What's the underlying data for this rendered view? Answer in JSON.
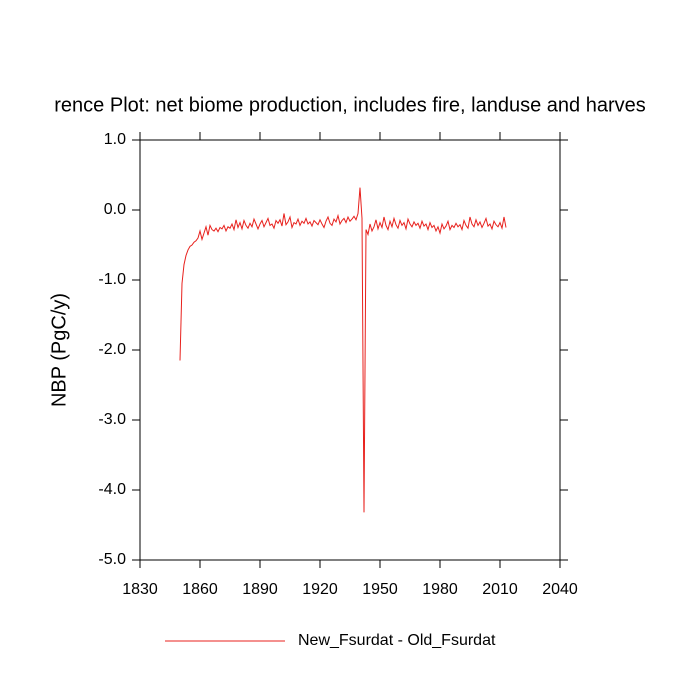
{
  "chart_data": {
    "type": "line",
    "title": "rence Plot: net biome production, includes fire, landuse and harves",
    "y_label": "NBP  (PgC/y)",
    "x": [
      1850,
      1851,
      1852,
      1853,
      1854,
      1855,
      1856,
      1857,
      1858,
      1859,
      1860,
      1861,
      1862,
      1863,
      1864,
      1865,
      1866,
      1867,
      1868,
      1869,
      1870,
      1871,
      1872,
      1873,
      1874,
      1875,
      1876,
      1877,
      1878,
      1879,
      1880,
      1881,
      1882,
      1883,
      1884,
      1885,
      1886,
      1887,
      1888,
      1889,
      1890,
      1891,
      1892,
      1893,
      1894,
      1895,
      1896,
      1897,
      1898,
      1899,
      1900,
      1901,
      1902,
      1903,
      1904,
      1905,
      1906,
      1907,
      1908,
      1909,
      1910,
      1911,
      1912,
      1913,
      1914,
      1915,
      1916,
      1917,
      1918,
      1919,
      1920,
      1921,
      1922,
      1923,
      1924,
      1925,
      1926,
      1927,
      1928,
      1929,
      1930,
      1931,
      1932,
      1933,
      1934,
      1935,
      1936,
      1937,
      1938,
      1939,
      1940,
      1941,
      1942,
      1943,
      1944,
      1945,
      1946,
      1947,
      1948,
      1949,
      1950,
      1951,
      1952,
      1953,
      1954,
      1955,
      1956,
      1957,
      1958,
      1959,
      1960,
      1961,
      1962,
      1963,
      1964,
      1965,
      1966,
      1967,
      1968,
      1969,
      1970,
      1971,
      1972,
      1973,
      1974,
      1975,
      1976,
      1977,
      1978,
      1979,
      1980,
      1981,
      1982,
      1983,
      1984,
      1985,
      1986,
      1987,
      1988,
      1989,
      1990,
      1991,
      1992,
      1993,
      1994,
      1995,
      1996,
      1997,
      1998,
      1999,
      2000,
      2001,
      2002,
      2003,
      2004,
      2005,
      2006,
      2007,
      2008,
      2009,
      2010,
      2011,
      2012,
      2013
    ],
    "series": [
      {
        "name": "New_Fsurdat - Old_Fsurdat",
        "color": "#e8201c",
        "values": [
          -2.15,
          -1.05,
          -0.78,
          -0.65,
          -0.57,
          -0.52,
          -0.5,
          -0.46,
          -0.44,
          -0.4,
          -0.3,
          -0.42,
          -0.33,
          -0.24,
          -0.36,
          -0.22,
          -0.28,
          -0.3,
          -0.26,
          -0.31,
          -0.25,
          -0.27,
          -0.22,
          -0.3,
          -0.24,
          -0.26,
          -0.2,
          -0.28,
          -0.14,
          -0.25,
          -0.18,
          -0.27,
          -0.15,
          -0.22,
          -0.26,
          -0.19,
          -0.24,
          -0.13,
          -0.2,
          -0.27,
          -0.2,
          -0.15,
          -0.24,
          -0.18,
          -0.12,
          -0.22,
          -0.2,
          -0.26,
          -0.15,
          -0.19,
          -0.14,
          -0.23,
          -0.05,
          -0.21,
          -0.17,
          -0.1,
          -0.25,
          -0.18,
          -0.2,
          -0.13,
          -0.22,
          -0.16,
          -0.19,
          -0.12,
          -0.2,
          -0.17,
          -0.23,
          -0.15,
          -0.18,
          -0.21,
          -0.14,
          -0.2,
          -0.25,
          -0.16,
          -0.1,
          -0.19,
          -0.22,
          -0.13,
          -0.17,
          -0.08,
          -0.2,
          -0.15,
          -0.12,
          -0.18,
          -0.1,
          -0.16,
          -0.13,
          -0.09,
          -0.14,
          -0.05,
          0.32,
          -0.12,
          -4.32,
          -0.28,
          -0.35,
          -0.2,
          -0.3,
          -0.24,
          -0.14,
          -0.27,
          -0.18,
          -0.25,
          -0.1,
          -0.22,
          -0.28,
          -0.16,
          -0.24,
          -0.12,
          -0.21,
          -0.26,
          -0.15,
          -0.22,
          -0.18,
          -0.27,
          -0.13,
          -0.2,
          -0.24,
          -0.17,
          -0.22,
          -0.19,
          -0.26,
          -0.16,
          -0.23,
          -0.2,
          -0.28,
          -0.18,
          -0.25,
          -0.22,
          -0.3,
          -0.24,
          -0.33,
          -0.2,
          -0.27,
          -0.23,
          -0.16,
          -0.28,
          -0.22,
          -0.25,
          -0.19,
          -0.24,
          -0.21,
          -0.28,
          -0.15,
          -0.22,
          -0.26,
          -0.1,
          -0.2,
          -0.24,
          -0.14,
          -0.22,
          -0.17,
          -0.25,
          -0.19,
          -0.12,
          -0.23,
          -0.2,
          -0.27,
          -0.16,
          -0.21,
          -0.24,
          -0.18,
          -0.26,
          -0.1,
          -0.25
        ]
      }
    ],
    "xlim": [
      1830,
      2040
    ],
    "xticks": [
      1830,
      1860,
      1890,
      1920,
      1950,
      1980,
      2010,
      2040
    ],
    "ylim": [
      -5,
      1
    ],
    "yticks": [
      {
        "value": -5,
        "label": "-5.0"
      },
      {
        "value": -4,
        "label": "-4.0"
      },
      {
        "value": -3,
        "label": "-3.0"
      },
      {
        "value": -2,
        "label": "-2.0"
      },
      {
        "value": -1,
        "label": "-1.0"
      },
      {
        "value": 0,
        "label": "0.0"
      },
      {
        "value": 1,
        "label": "1.0"
      }
    ],
    "grid": false
  }
}
